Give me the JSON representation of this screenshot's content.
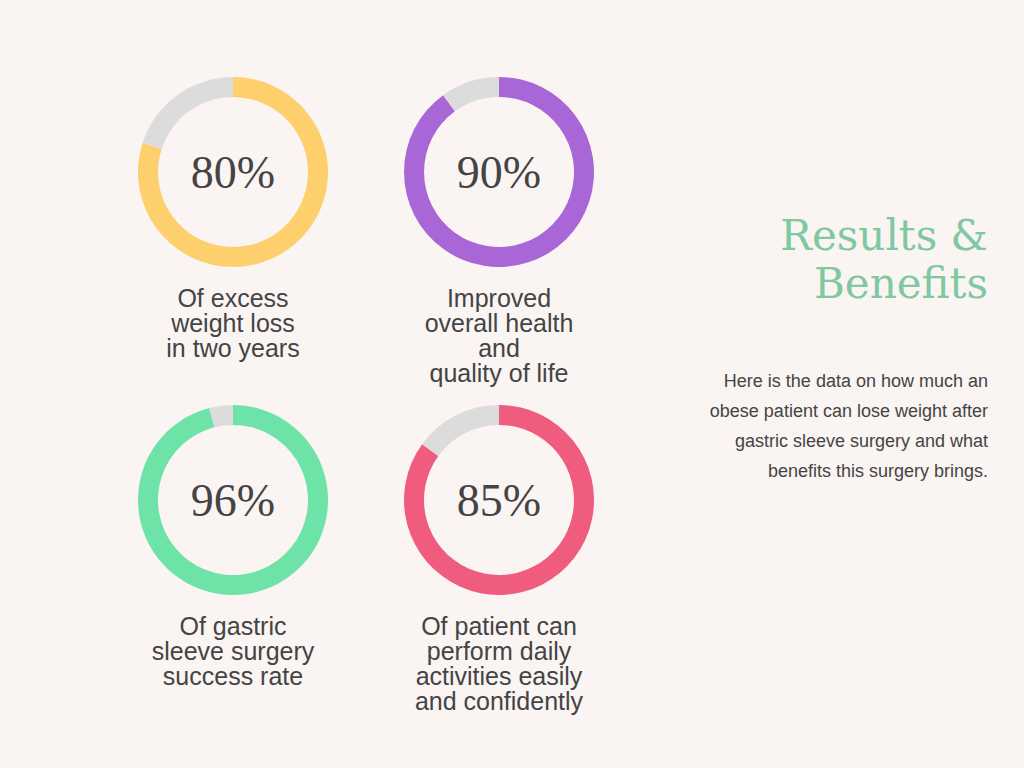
{
  "title": "Results &\nBenefits",
  "description": "Here is the data on how much an\nobese patient can lose weight after\ngastric sleeve surgery and what\nbenefits this surgery brings.",
  "chart_data": [
    {
      "type": "pie",
      "title": "Of excess\nweight loss\nin two years",
      "values": [
        80,
        20
      ],
      "value_labels": [
        "80%",
        null
      ],
      "colors": [
        "#fecf6d",
        "#dcdcdc"
      ]
    },
    {
      "type": "pie",
      "title": "Improved\noverall health\nand\nquality of life",
      "values": [
        90,
        10
      ],
      "value_labels": [
        "90%",
        null
      ],
      "colors": [
        "#a866d6",
        "#dcdcdc"
      ]
    },
    {
      "type": "pie",
      "title": "Of gastric\nsleeve surgery\nsuccess rate",
      "values": [
        96,
        4
      ],
      "value_labels": [
        "96%",
        null
      ],
      "colors": [
        "#6ee3a8",
        "#dcdcdc"
      ]
    },
    {
      "type": "pie",
      "title": "Of patient can\nperform daily\nactivities easily\nand confidently",
      "values": [
        85,
        15
      ],
      "value_labels": [
        "85%",
        null
      ],
      "colors": [
        "#ef5c7d",
        "#dcdcdc"
      ]
    }
  ]
}
